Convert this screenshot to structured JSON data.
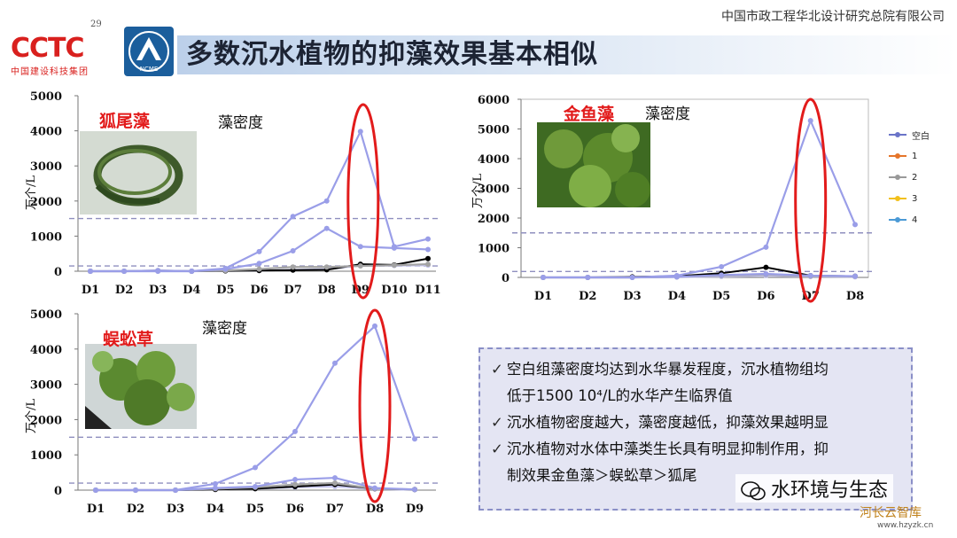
{
  "header": {
    "org": "中国市政工程华北设计研究总院有限公司",
    "cctc_logo": "CCTC",
    "cctc_sub": "中国建设科技集团",
    "cctc_num": "29",
    "ncme_logo": "NCME",
    "title": "多数沉水植物的抑藻效果基本相似"
  },
  "colors": {
    "blank": "#9a9ee8",
    "s1": "#9a9ee8",
    "s2": "#a3a3a3",
    "s3": "#000000",
    "s4": "#c7c7f0",
    "threshold": "#8f8fbf",
    "highlight": "#e21b1b"
  },
  "charts": [
    {
      "plant": "狐尾藻",
      "density_label": "藻密度",
      "ylabel": "万个/L",
      "photo_icon": "foxtail-algae-photo"
    },
    {
      "plant": "金鱼藻",
      "density_label": "藻密度",
      "ylabel": "万个/L",
      "photo_icon": "hornwort-photo"
    },
    {
      "plant": "蜈蚣草",
      "density_label": "藻密度",
      "ylabel": "万个/L",
      "photo_icon": "centipede-grass-photo"
    }
  ],
  "legend": [
    "空白",
    "1",
    "2",
    "3",
    "4"
  ],
  "chart_data": [
    {
      "type": "line",
      "title": "藻密度",
      "ylabel": "万个/L",
      "categories": [
        "D1",
        "D2",
        "D3",
        "D4",
        "D5",
        "D6",
        "D7",
        "D8",
        "D9",
        "D10",
        "D11"
      ],
      "ylim": [
        0,
        5000
      ],
      "yticks": [
        0,
        1000,
        2000,
        3000,
        4000,
        5000
      ],
      "reference_lines": [
        1500,
        150
      ],
      "highlight_category": "D9",
      "series": [
        {
          "name": "空白",
          "values": [
            0,
            0,
            0,
            0,
            80,
            560,
            1560,
            2000,
            3980,
            700,
            920
          ]
        },
        {
          "name": "1",
          "values": [
            0,
            0,
            20,
            0,
            60,
            220,
            580,
            1220,
            700,
            660,
            620
          ]
        },
        {
          "name": "2",
          "values": [
            0,
            0,
            20,
            0,
            20,
            60,
            120,
            120,
            150,
            170,
            200
          ]
        },
        {
          "name": "3",
          "values": [
            0,
            0,
            10,
            0,
            10,
            20,
            30,
            40,
            200,
            180,
            360
          ]
        },
        {
          "name": "4",
          "values": [
            0,
            0,
            0,
            0,
            10,
            20,
            40,
            60,
            160,
            160,
            170
          ]
        }
      ]
    },
    {
      "type": "line",
      "title": "藻密度",
      "ylabel": "万个/L",
      "categories": [
        "D1",
        "D2",
        "D3",
        "D4",
        "D5",
        "D6",
        "D7",
        "D8"
      ],
      "ylim": [
        0,
        6000
      ],
      "yticks": [
        0,
        1000,
        2000,
        3000,
        4000,
        5000,
        6000
      ],
      "reference_lines": [
        1500,
        200
      ],
      "highlight_category": "D7",
      "series": [
        {
          "name": "空白",
          "values": [
            0,
            0,
            0,
            60,
            360,
            1020,
            5280,
            1780
          ]
        },
        {
          "name": "1",
          "values": [
            0,
            0,
            0,
            20,
            80,
            120,
            60,
            40
          ]
        },
        {
          "name": "2",
          "values": [
            0,
            0,
            0,
            20,
            60,
            100,
            40,
            40
          ]
        },
        {
          "name": "3",
          "values": [
            0,
            0,
            20,
            40,
            140,
            340,
            60,
            40
          ]
        },
        {
          "name": "4",
          "values": [
            0,
            0,
            0,
            10,
            30,
            60,
            30,
            20
          ]
        }
      ]
    },
    {
      "type": "line",
      "title": "藻密度",
      "ylabel": "万个/L",
      "categories": [
        "D1",
        "D2",
        "D3",
        "D4",
        "D5",
        "D6",
        "D7",
        "D8",
        "D9"
      ],
      "ylim": [
        0,
        5000
      ],
      "yticks": [
        0,
        1000,
        2000,
        3000,
        4000,
        5000
      ],
      "reference_lines": [
        1500,
        200
      ],
      "highlight_category": "D8",
      "series": [
        {
          "name": "空白",
          "values": [
            0,
            0,
            0,
            180,
            640,
            1660,
            3600,
            4650,
            1450
          ]
        },
        {
          "name": "1",
          "values": [
            0,
            0,
            0,
            60,
            100,
            300,
            350,
            60,
            20
          ]
        },
        {
          "name": "2",
          "values": [
            0,
            0,
            0,
            40,
            80,
            160,
            200,
            40,
            20
          ]
        },
        {
          "name": "3",
          "values": [
            0,
            0,
            0,
            20,
            40,
            100,
            160,
            40,
            20
          ]
        },
        {
          "name": "4",
          "values": [
            0,
            0,
            0,
            20,
            40,
            80,
            100,
            30,
            10
          ]
        }
      ]
    }
  ],
  "notes": [
    "空白组藻密度均达到水华暴发程度，沉水植物组均",
    "低于1500 10⁴/L的水华产生临界值",
    "沉水植物密度越大，藻密度越低，抑藻效果越明显",
    "沉水植物对水体中藻类生长具有明显抑制作用，抑",
    "制效果金鱼藻＞蜈蚣草＞狐尾"
  ],
  "watermark": {
    "text": "水环境与生态",
    "sub": "河长云智库",
    "url": "www.hzyzk.cn"
  }
}
